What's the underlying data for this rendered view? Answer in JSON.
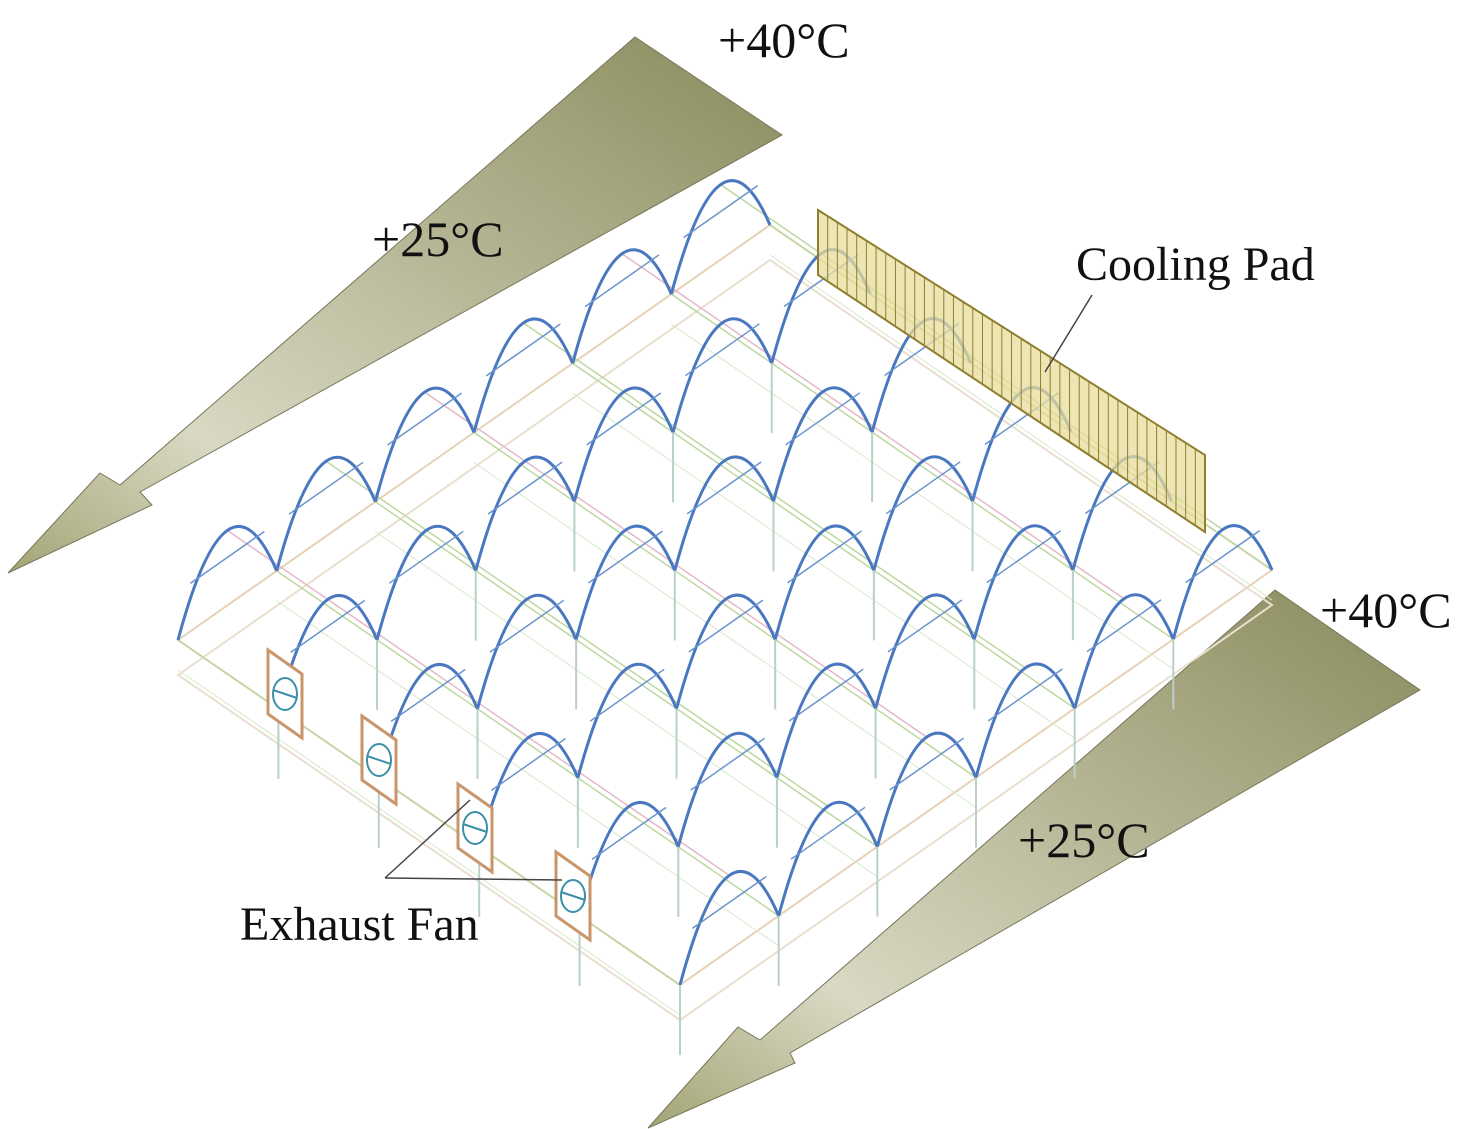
{
  "arrows": [
    {
      "hot_label": "+40°C",
      "cool_label": "+25°C"
    },
    {
      "hot_label": "+40°C",
      "cool_label": "+25°C"
    }
  ],
  "callouts": {
    "cooling_pad": "Cooling Pad",
    "exhaust_fan": "Exhaust Fan"
  }
}
